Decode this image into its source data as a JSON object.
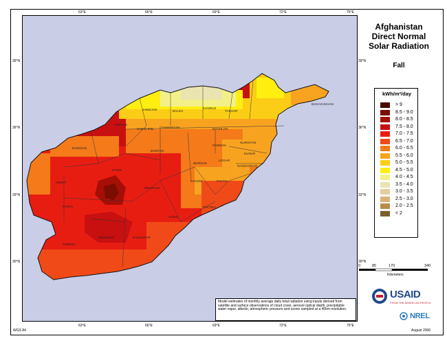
{
  "title": {
    "line1": "Afghanistan",
    "line2": "Direct Normal",
    "line3": "Solar Radiation"
  },
  "season": "Fall",
  "legend": {
    "unit": "kWh/m²/day",
    "classes": [
      {
        "label": "> 9",
        "color": "#4a0a00"
      },
      {
        "label": "8.5 - 9.0",
        "color": "#7a0c00"
      },
      {
        "label": "8.0 - 8.5",
        "color": "#a60f05"
      },
      {
        "label": "7.5 - 8.0",
        "color": "#c81010"
      },
      {
        "label": "7.0 - 7.5",
        "color": "#e81d12"
      },
      {
        "label": "6.5 - 7.0",
        "color": "#f04a18"
      },
      {
        "label": "6.0 - 6.5",
        "color": "#f47a1a"
      },
      {
        "label": "5.5 - 6.0",
        "color": "#f8a320"
      },
      {
        "label": "5.0 - 5.5",
        "color": "#fbcd16"
      },
      {
        "label": "4.5 - 5.0",
        "color": "#ffee10"
      },
      {
        "label": "4.0 - 4.5",
        "color": "#f3f08a"
      },
      {
        "label": "3.5 - 4.0",
        "color": "#e9e4b0"
      },
      {
        "label": "3.0 - 3.5",
        "color": "#e5cda2"
      },
      {
        "label": "2.5 - 3.0",
        "color": "#d9b27a"
      },
      {
        "label": "2.0 - 2.5",
        "color": "#b88d4a"
      },
      {
        "label": "< 2",
        "color": "#7c5e2e"
      }
    ]
  },
  "ticks": {
    "top": [
      "63°E",
      "66°E",
      "69°E",
      "72°E",
      "75°E"
    ],
    "bottom": [
      "63°E",
      "66°E",
      "69°E",
      "72°E",
      "75°E"
    ],
    "left": [
      "39°N",
      "36°N",
      "33°N",
      "30°N"
    ],
    "right": [
      "39°N",
      "36°N",
      "33°N",
      "30°N"
    ]
  },
  "provinces": [
    "JAWZJAN",
    "BALKH",
    "KUNDUZ",
    "TAKHAR",
    "BADAKHSHAN",
    "FARYAB",
    "SAR-E POL",
    "SAMANGAN",
    "BAGHLAN",
    "NURISTAN",
    "BADGHIS",
    "BAMYAN",
    "PARWAN",
    "KUNAR",
    "HERAT",
    "GHOR",
    "WARDAK",
    "LOGAR",
    "NANGARHAR",
    "ORUZGAN",
    "GHAZNI",
    "PAKTIA",
    "FARAH",
    "PAKTIKA",
    "ZABUL",
    "KANDAHAR",
    "HELMAND",
    "NIMROZ"
  ],
  "scalebar": {
    "ticks": [
      "0",
      "85",
      "170",
      "340"
    ],
    "unit": "Kilometers"
  },
  "logos": {
    "usaid": "USAID",
    "usaid_tagline": "FROM THE AMERICAN PEOPLE",
    "nrel": "NREL"
  },
  "note": "Model estimates of monthly average daily total radiation using inputs derived from satellite and surface observations of cloud cover, aerosol optical depth, precipitable water vapor, albedo, atmospheric pressure and ozone sampled at a 40km resolution.",
  "footer": {
    "left": "WGS 84",
    "right": "August 2006"
  }
}
